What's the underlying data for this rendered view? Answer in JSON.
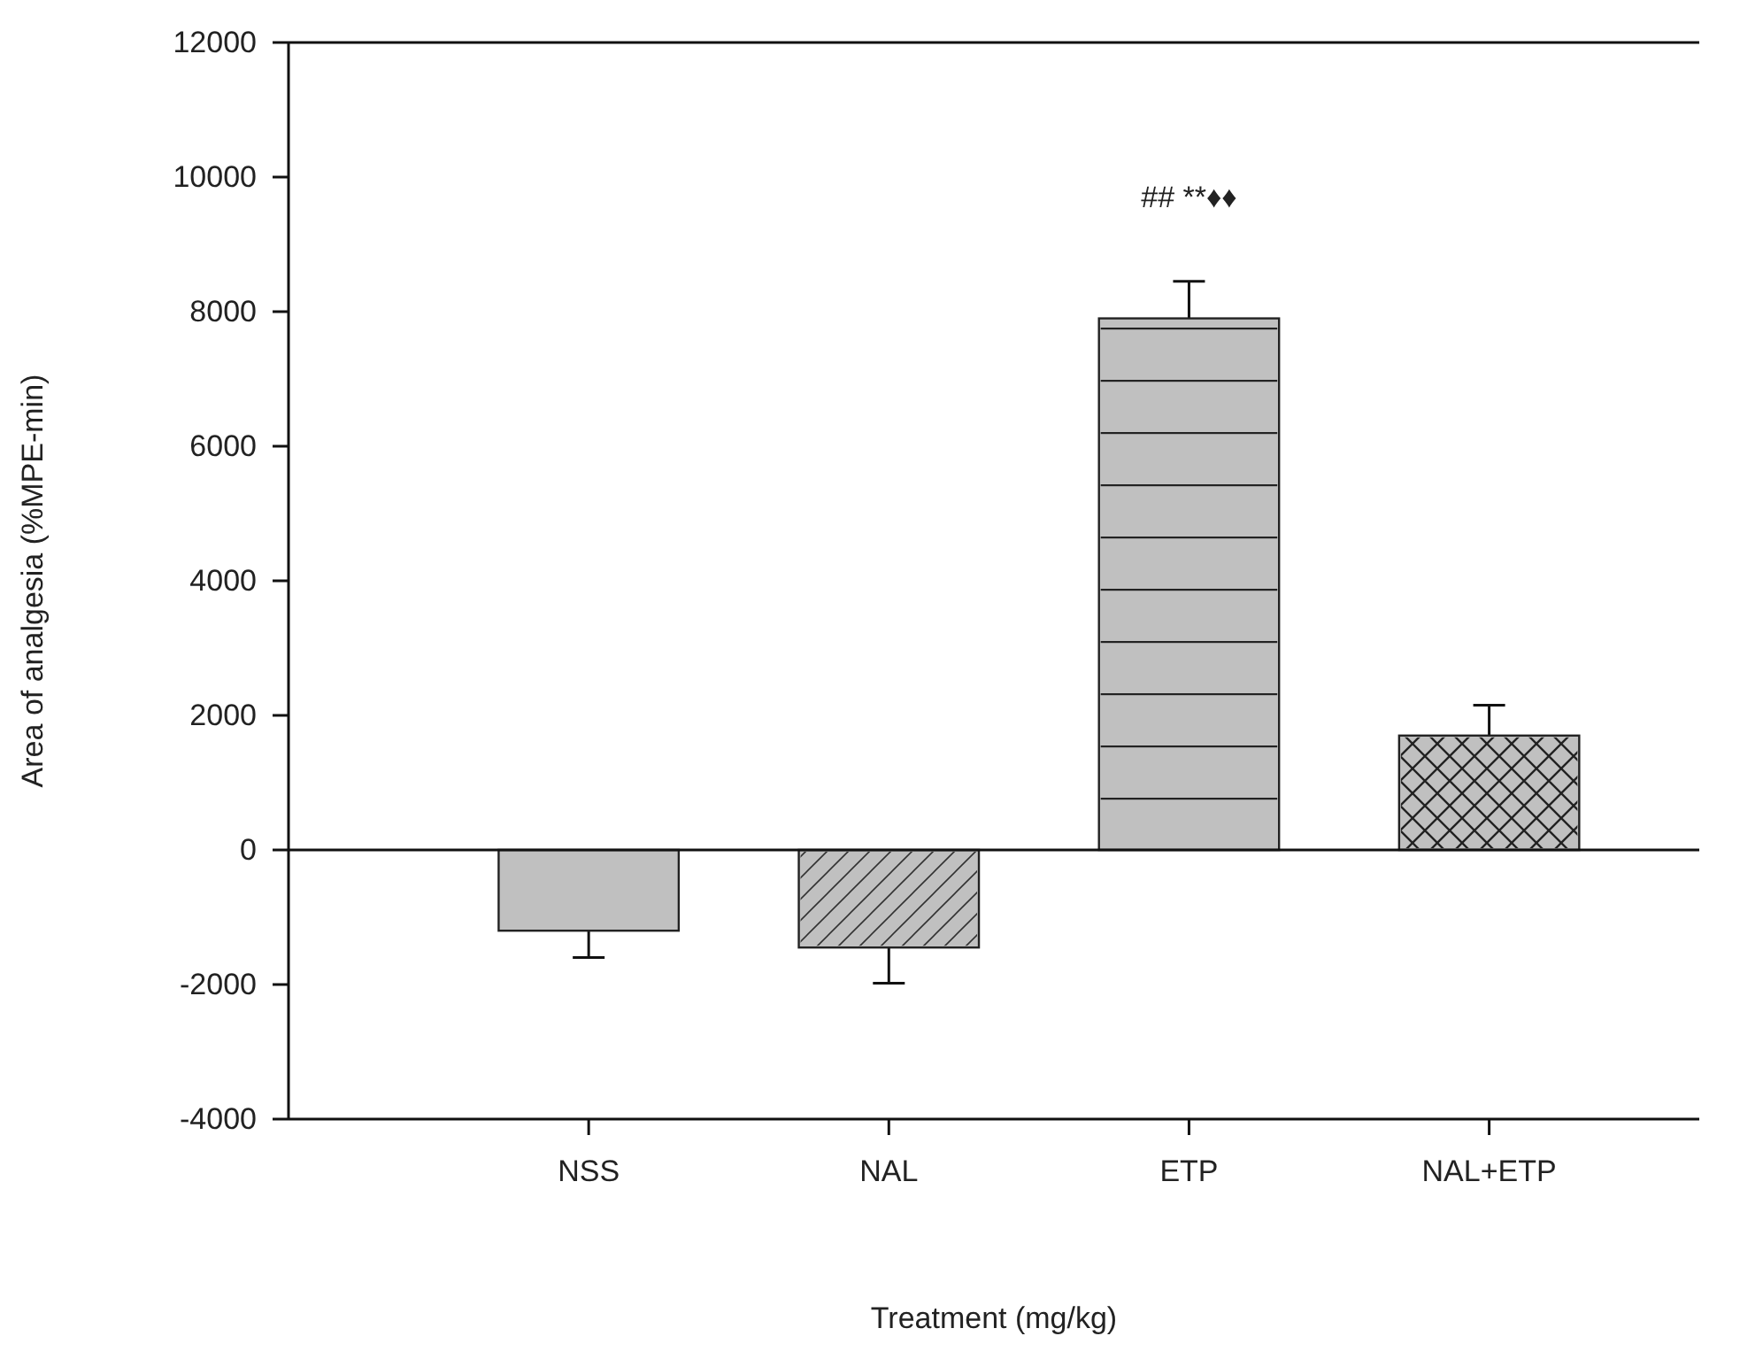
{
  "chart_data": {
    "type": "bar",
    "xlabel": "Treatment (mg/kg)",
    "ylabel": "Area of analgesia (%MPE-min)",
    "categories": [
      "NSS",
      "NAL",
      "ETP",
      "NAL+ETP"
    ],
    "values": [
      -1200,
      -1450,
      7900,
      1700
    ],
    "errors": [
      400,
      530,
      550,
      450
    ],
    "color": "#c0c0c0",
    "ylim": [
      -4000,
      12000
    ],
    "yticks": [
      -4000,
      -2000,
      0,
      2000,
      4000,
      6000,
      8000,
      10000,
      12000
    ],
    "annotations": [
      "## **♦♦"
    ]
  }
}
